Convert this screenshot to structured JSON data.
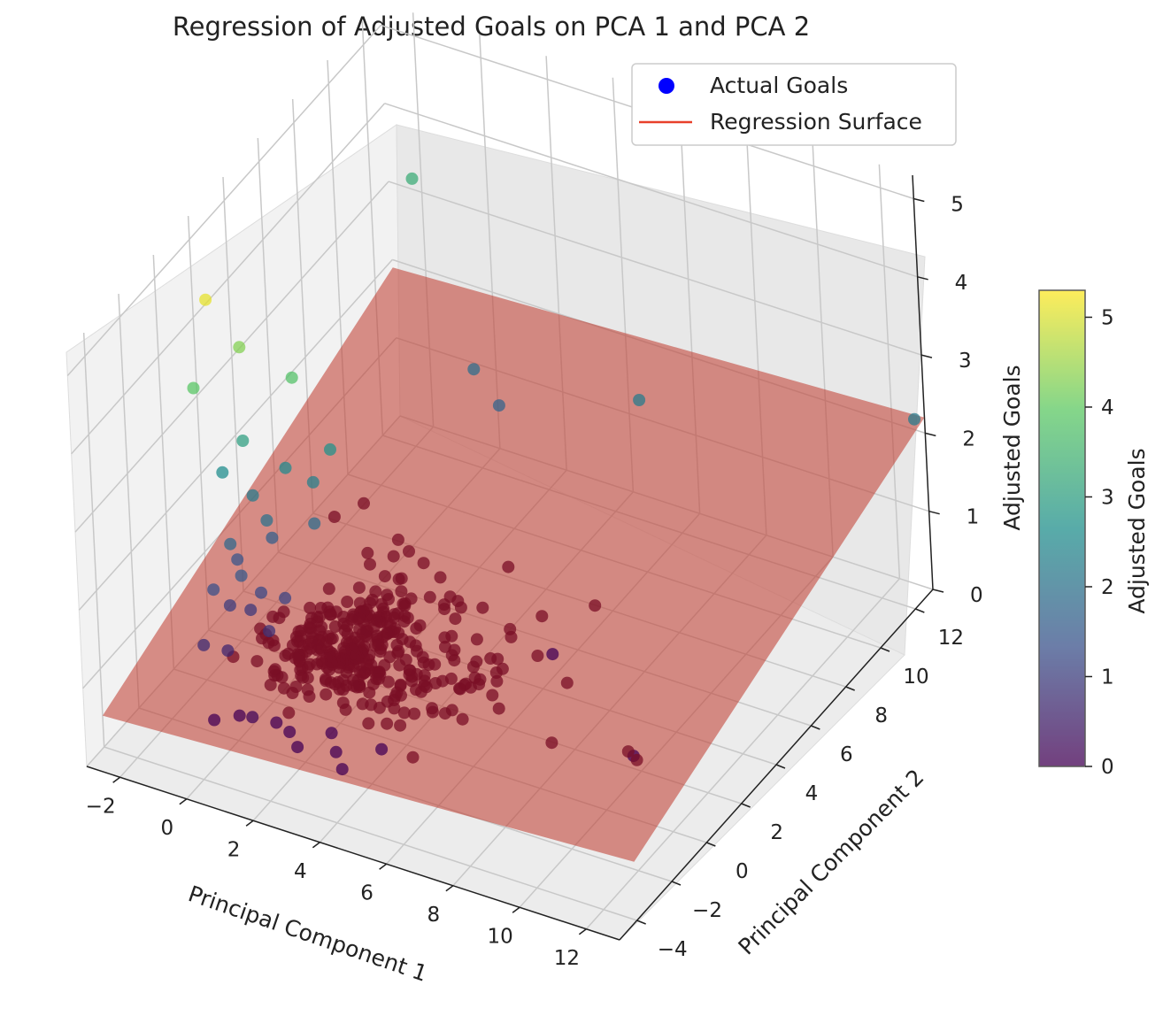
{
  "chart_data": {
    "type": "scatter",
    "title": "Regression of Adjusted Goals on PCA 1 and PCA 2",
    "xlabel": "Principal Component 1",
    "ylabel": "Principal Component 2",
    "zlabel": "Adjusted Goals",
    "xlim": [
      -3,
      13
    ],
    "ylim": [
      -5,
      13
    ],
    "zlim": [
      0,
      5.3
    ],
    "x_ticks": [
      "−2",
      "0",
      "2",
      "4",
      "6",
      "8",
      "10",
      "12"
    ],
    "y_ticks": [
      "−4",
      "−2",
      "0",
      "2",
      "4",
      "6",
      "8",
      "10",
      "12"
    ],
    "z_ticks": [
      "0",
      "1",
      "2",
      "3",
      "4",
      "5"
    ],
    "grid": true,
    "legend": {
      "position": "top-right",
      "entries": [
        {
          "label": "Actual Goals",
          "marker": "dot",
          "color": "#0000ff"
        },
        {
          "label": "Regression Surface",
          "marker": "line",
          "color": "#e8402a"
        }
      ]
    },
    "colorbar": {
      "label": "Adjusted Goals",
      "ticks": [
        "0",
        "1",
        "2",
        "3",
        "4",
        "5"
      ],
      "range": [
        0,
        5.3
      ],
      "colormap": [
        "#440154",
        "#3b528b",
        "#21908d",
        "#5dc963",
        "#fde725"
      ]
    },
    "surface": {
      "color": "#c0392b",
      "opacity": 0.55,
      "corners": [
        {
          "x": -3,
          "y": -4,
          "z": 0.4
        },
        {
          "x": 13,
          "y": -4,
          "z": 0.75
        },
        {
          "x": 13,
          "y": 13,
          "z": 2.2
        },
        {
          "x": -3,
          "y": 13,
          "z": 1.9
        }
      ]
    },
    "points": [
      {
        "x": -1.2,
        "y": -0.5,
        "z": 5.1
      },
      {
        "x": -0.8,
        "y": 0.5,
        "z": 4.3
      },
      {
        "x": 0.2,
        "y": 1.5,
        "z": 3.8
      },
      {
        "x": -1.7,
        "y": -0.5,
        "z": 3.9
      },
      {
        "x": -1.0,
        "y": 0.8,
        "z": 3.0
      },
      {
        "x": -1.5,
        "y": 0.5,
        "z": 2.6
      },
      {
        "x": 0.7,
        "y": 2.5,
        "z": 2.7
      },
      {
        "x": -0.3,
        "y": 1.8,
        "z": 2.5
      },
      {
        "x": 0.3,
        "y": 2.2,
        "z": 2.3
      },
      {
        "x": -1.0,
        "y": 1.2,
        "z": 2.2
      },
      {
        "x": -0.5,
        "y": 1.0,
        "z": 2.0
      },
      {
        "x": -1.2,
        "y": 0.2,
        "z": 1.8
      },
      {
        "x": -0.8,
        "y": 0.0,
        "z": 1.5
      },
      {
        "x": -1.5,
        "y": -0.3,
        "z": 1.3
      },
      {
        "x": -0.5,
        "y": 0.5,
        "z": 1.2
      },
      {
        "x": -1.3,
        "y": 0.2,
        "z": 1.0
      },
      {
        "x": -0.9,
        "y": 0.6,
        "z": 0.9
      },
      {
        "x": -1.6,
        "y": -0.8,
        "z": 0.7
      },
      {
        "x": -0.2,
        "y": 0.3,
        "z": 0.8
      },
      {
        "x": -1.1,
        "y": -0.4,
        "z": 0.6
      },
      {
        "x": 0.0,
        "y": 0.9,
        "z": 1.1
      },
      {
        "x": -0.7,
        "y": 1.6,
        "z": 1.6
      },
      {
        "x": 0.5,
        "y": 1.8,
        "z": 1.9
      },
      {
        "x": -1.4,
        "y": 0.9,
        "z": 1.4
      },
      {
        "x": 9.5,
        "y": 2.5,
        "z": 0.0
      },
      {
        "x": 5.5,
        "y": 5.5,
        "z": 0.0
      },
      {
        "x": 3.0,
        "y": -1.8,
        "z": 0.0
      },
      {
        "x": 2.5,
        "y": -1.2,
        "z": 0.0
      },
      {
        "x": 1.0,
        "y": -1.0,
        "z": 0.0
      },
      {
        "x": 0.5,
        "y": -0.8,
        "z": 0.0
      },
      {
        "x": -1.0,
        "y": -1.5,
        "z": 0.0
      },
      {
        "x": -0.5,
        "y": -1.0,
        "z": 0.0
      },
      {
        "x": 2.0,
        "y": -0.5,
        "z": 0.0
      },
      {
        "x": 3.5,
        "y": -0.5,
        "z": 0.0
      },
      {
        "x": 1.5,
        "y": -1.5,
        "z": 0.0
      },
      {
        "x": 0.0,
        "y": -1.2,
        "z": 0.1
      },
      {
        "x": 6.0,
        "y": 10.0,
        "z": 2.2
      },
      {
        "x": 1.0,
        "y": 10.0,
        "z": 1.9
      },
      {
        "x": 2.0,
        "y": 9.5,
        "z": 1.7
      },
      {
        "x": 12.8,
        "y": 12.8,
        "z": 2.2
      },
      {
        "x": -2.0,
        "y": 12.5,
        "z": 3.3
      }
    ],
    "cluster": {
      "center": {
        "x": 0.8,
        "y": 0.6
      },
      "count": 360,
      "spread": [
        2.4,
        2.1
      ],
      "value": 0.5
    }
  }
}
